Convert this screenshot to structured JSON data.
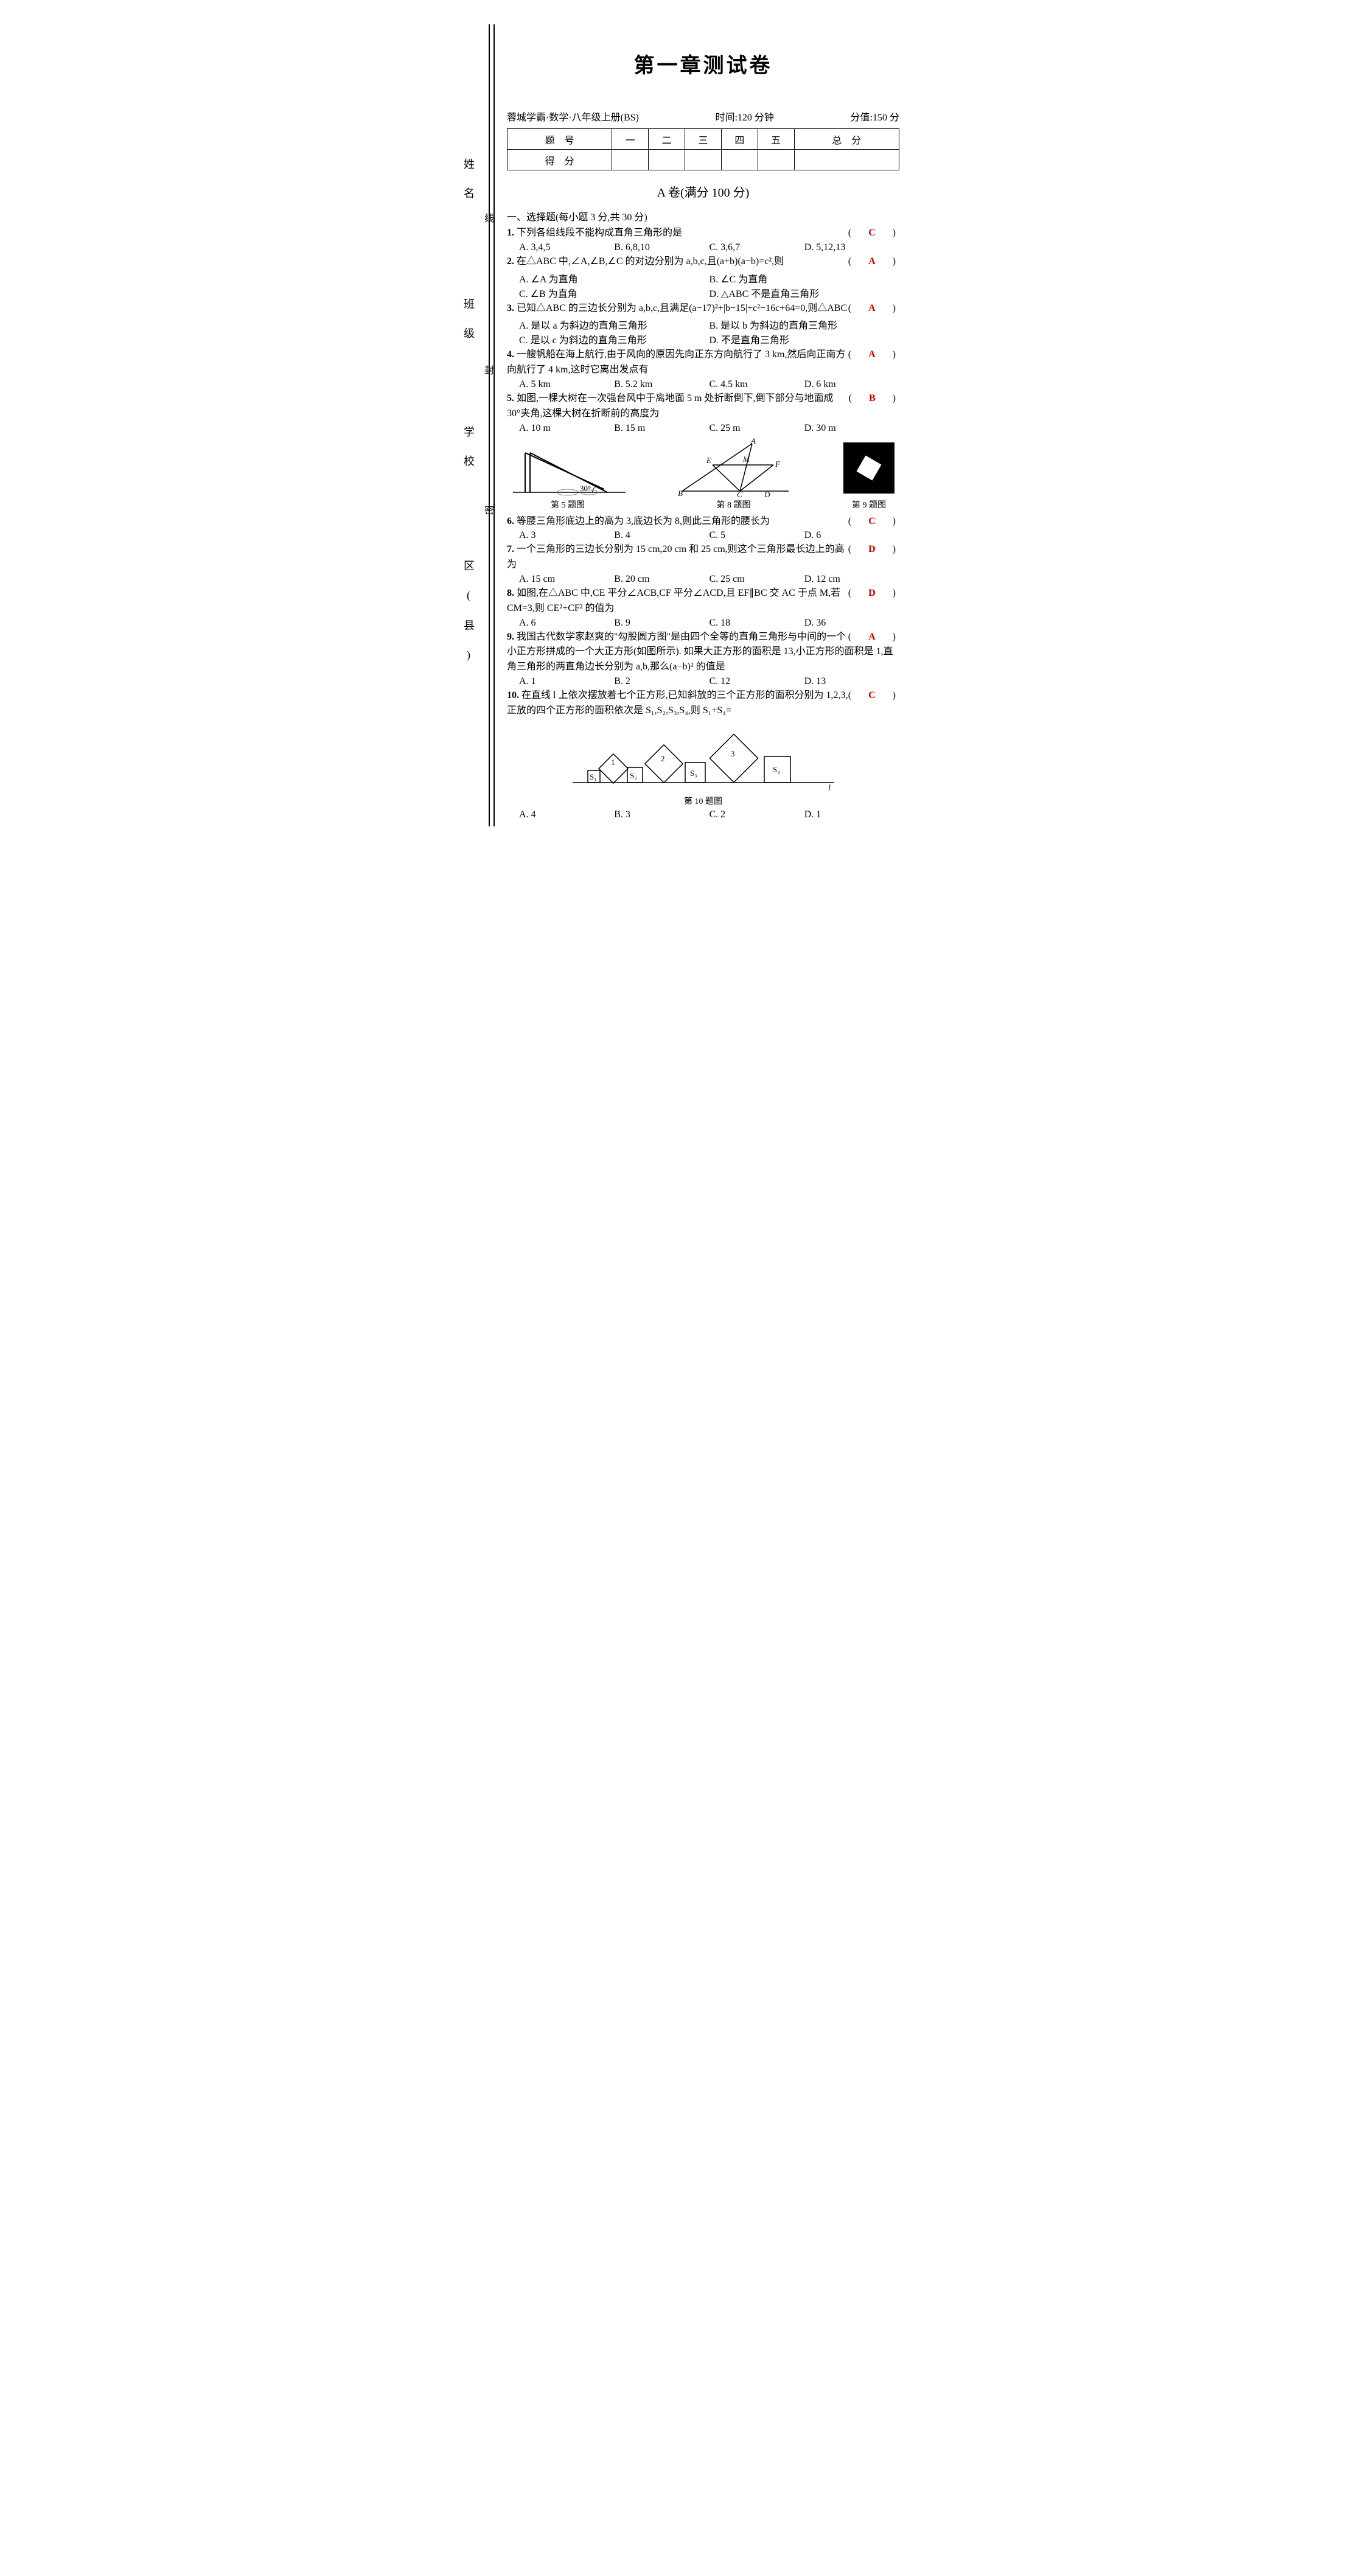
{
  "title": "第一章测试卷",
  "meta": {
    "book": "蓉城学霸·数学·八年级上册(BS)",
    "time": "时间:120 分钟",
    "score": "分值:150 分"
  },
  "margin": {
    "labels": [
      "姓名",
      "班级",
      "学校",
      "区(县)"
    ],
    "marks": [
      "线",
      "封",
      "密"
    ]
  },
  "score_table": {
    "headers": [
      "题　号",
      "一",
      "二",
      "三",
      "四",
      "五",
      "总　分"
    ],
    "row2": "得　分"
  },
  "sectionA": "A 卷(满分 100 分)",
  "part1_head": "一、选择题(每小题 3 分,共 30 分)",
  "questions": [
    {
      "n": "1.",
      "text": "下列各组线段不能构成直角三角形的是",
      "ans": "C",
      "opts": [
        "A. 3,4,5",
        "B. 6,8,10",
        "C. 3,6,7",
        "D. 5,12,13"
      ]
    },
    {
      "n": "2.",
      "text": "在△ABC 中,∠A,∠B,∠C 的对边分别为 a,b,c,且(a+b)(a−b)=c²,则",
      "ans": "A",
      "opts": [
        "A. ∠A 为直角",
        "B. ∠C 为直角",
        "C. ∠B 为直角",
        "D. △ABC 不是直角三角形"
      ],
      "two": true
    },
    {
      "n": "3.",
      "text": "已知△ABC 的三边长分别为 a,b,c,且满足(a−17)²+|b−15|+c²−16c+64=0,则△ABC",
      "ans": "A",
      "opts": [
        "A. 是以 a 为斜边的直角三角形",
        "B. 是以 b 为斜边的直角三角形",
        "C. 是以 c 为斜边的直角三角形",
        "D. 不是直角三角形"
      ],
      "two": true
    },
    {
      "n": "4.",
      "text": "一艘帆船在海上航行,由于风向的原因先向正东方向航行了 3 km,然后向正南方向航行了 4 km,这时它离出发点有",
      "ans": "A",
      "opts": [
        "A. 5 km",
        "B. 5.2 km",
        "C. 4.5 km",
        "D. 6 km"
      ]
    },
    {
      "n": "5.",
      "text": "如图,一棵大树在一次强台风中于离地面 5 m 处折断倒下,倒下部分与地面成 30°夹角,这棵大树在折断前的高度为",
      "ans": "B",
      "opts": [
        "A. 10 m",
        "B. 15 m",
        "C. 25 m",
        "D. 30 m"
      ]
    },
    {
      "n": "6.",
      "text": "等腰三角形底边上的高为 3,底边长为 8,则此三角形的腰长为",
      "ans": "C",
      "opts": [
        "A. 3",
        "B. 4",
        "C. 5",
        "D. 6"
      ]
    },
    {
      "n": "7.",
      "text": "一个三角形的三边长分别为 15 cm,20 cm 和 25 cm,则这个三角形最长边上的高为",
      "ans": "D",
      "opts": [
        "A. 15 cm",
        "B. 20 cm",
        "C. 25 cm",
        "D. 12 cm"
      ]
    },
    {
      "n": "8.",
      "text": "如图,在△ABC 中,CE 平分∠ACB,CF 平分∠ACD,且 EF∥BC 交 AC 于点 M,若 CM=3,则 CE²+CF² 的值为",
      "ans": "D",
      "opts": [
        "A. 6",
        "B. 9",
        "C. 18",
        "D. 36"
      ]
    },
    {
      "n": "9.",
      "text": "我国古代数学家赵爽的\"勾股圆方图\"是由四个全等的直角三角形与中间的一个小正方形拼成的一个大正方形(如图所示). 如果大正方形的面积是 13,小正方形的面积是 1,直角三角形的两直角边长分别为 a,b,那么(a−b)² 的值是",
      "ans": "A",
      "opts": [
        "A. 1",
        "B. 2",
        "C. 12",
        "D. 13"
      ]
    },
    {
      "n": "10.",
      "text": "在直线 l 上依次摆放着七个正方形,已知斜放的三个正方形的面积分别为 1,2,3,正放的四个正方形的面积依次是 S₁,S₂,S₃,S₄,则 S₁+S₄=",
      "ans": "C",
      "opts": [
        "A. 4",
        "B. 3",
        "C. 2",
        "D. 1"
      ]
    }
  ],
  "fig_captions": {
    "f5": "第 5 题图",
    "f8": "第 8 题图",
    "f9": "第 9 题图",
    "f10": "第 10 题图"
  },
  "fig10_labels": {
    "s1": "S₁",
    "s2": "S₂",
    "s3": "S₃",
    "s4": "S₄",
    "n1": "1",
    "n2": "2",
    "n3": "3",
    "l": "l"
  },
  "fig5_angle": "30°",
  "fig8_labels": {
    "A": "A",
    "B": "B",
    "C": "C",
    "D": "D",
    "E": "E",
    "F": "F",
    "M": "M"
  },
  "colors": {
    "text": "#000000",
    "answer": "#cc0000",
    "stroke": "#000000",
    "fill_dark": "#000000",
    "bg": "#ffffff"
  }
}
